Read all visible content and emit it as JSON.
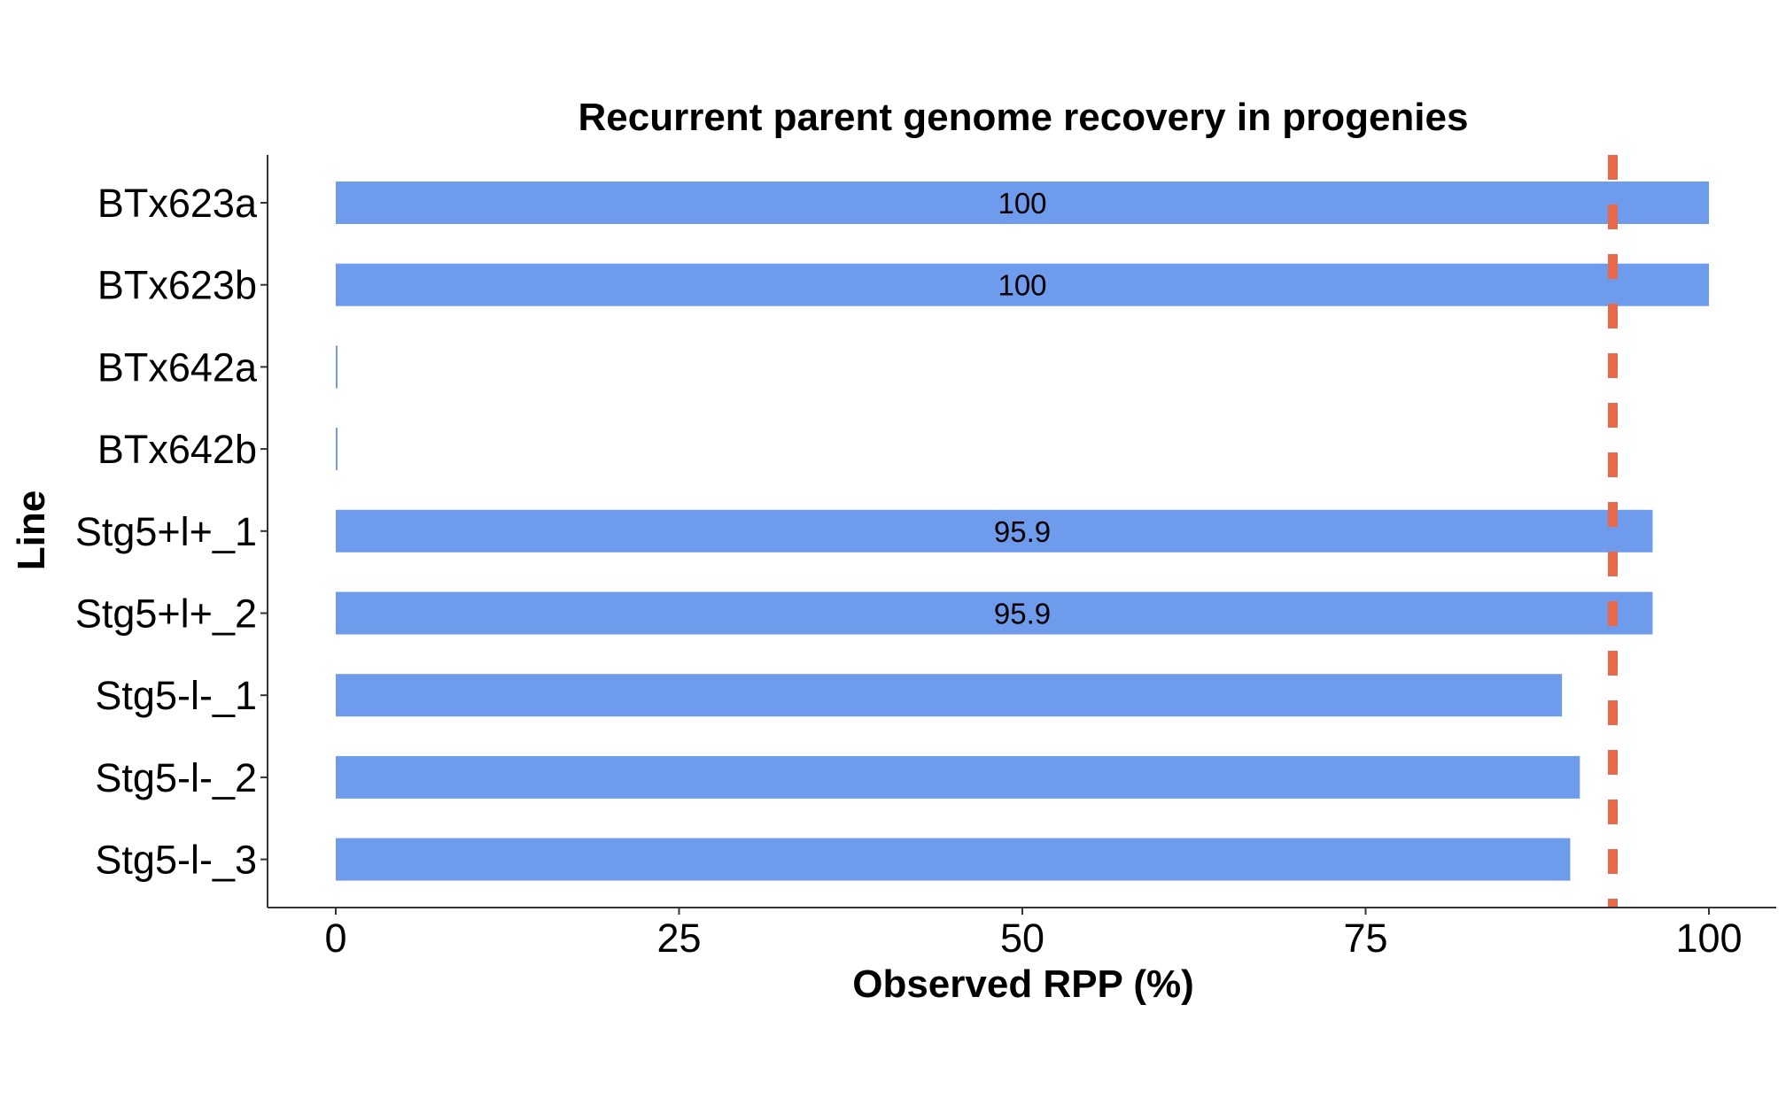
{
  "chart_data": {
    "type": "bar",
    "orientation": "horizontal",
    "title": "Recurrent parent genome recovery in progenies",
    "xlabel": "Observed RPP (%)",
    "ylabel": "Line",
    "categories": [
      "BTx623a",
      "BTx623b",
      "BTx642a",
      "BTx642b",
      "Stg5+l+_1",
      "Stg5+l+_2",
      "Stg5-l-_1",
      "Stg5-l-_2",
      "Stg5-l-_3"
    ],
    "values": [
      100,
      100,
      0,
      0,
      95.9,
      95.9,
      89.3,
      90.6,
      89.9
    ],
    "data_labels": [
      "100",
      "100",
      "",
      "",
      "95.9",
      "95.9",
      "",
      "",
      ""
    ],
    "xlim": [
      -5,
      105
    ],
    "xticks": [
      0,
      25,
      50,
      75,
      100
    ],
    "xtick_labels": [
      "0",
      "25",
      "50",
      "75",
      "100"
    ],
    "reference_line": {
      "x": 93,
      "style": "dashed"
    },
    "bar_color": "#6f9bed",
    "reference_color": "#e8684a",
    "grid": false,
    "legend": "none"
  }
}
